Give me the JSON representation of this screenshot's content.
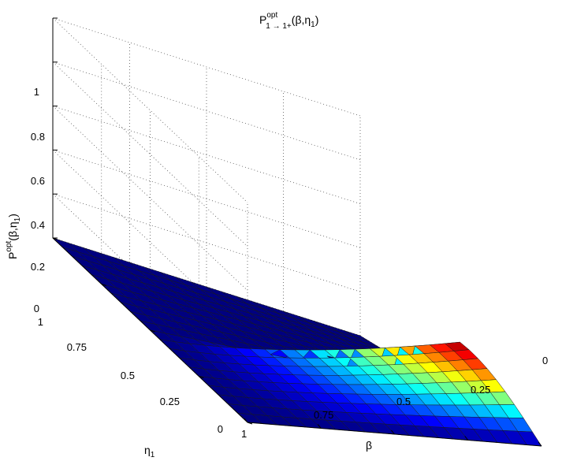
{
  "chart_data": {
    "type": "surface3d",
    "title": "P^{opt}_{1→ 1+}(β,η_1)",
    "title_parts": {
      "main": "P",
      "sup": "opt",
      "sub": "1 → 1+",
      "args": "(β,η",
      "args_sub": "1",
      "args_end": ")"
    },
    "xlabel": "β",
    "ylabel_parts": {
      "main": "η",
      "sub": "1"
    },
    "zlabel_parts": {
      "main": "P",
      "sup": "opt",
      "args": "(β,η",
      "args_sub": "1",
      "args_end": ")"
    },
    "x_range": [
      0,
      1
    ],
    "y_range": [
      0,
      1
    ],
    "zlim": [
      0,
      1
    ],
    "x_ticks": [
      "1",
      "0.75",
      "0.5",
      "0.25",
      "0"
    ],
    "x_tick_values": [
      1,
      0.75,
      0.5,
      0.25,
      0
    ],
    "y_ticks": [
      "0",
      "0.25",
      "0.5",
      "0.75",
      "1"
    ],
    "y_tick_values": [
      0,
      0.25,
      0.5,
      0.75,
      1
    ],
    "z_ticks": [
      "0",
      "0.2",
      "0.4",
      "0.6",
      "0.8",
      "1"
    ],
    "z_tick_values": [
      0,
      0.2,
      0.4,
      0.6,
      0.8,
      1
    ],
    "grid": true,
    "colormap": "jet",
    "color_range": [
      0,
      0.25
    ],
    "surface": {
      "x_steps": 20,
      "y_steps": 20,
      "peak_value": 0.25,
      "peak_at": {
        "beta": 0,
        "eta1": 0.5
      },
      "description_values": "P is 0 for eta1 >= 0.5; along beta = 0 it rises from 0 at eta1 = 0 to about 0.25 at eta1 = 0.5; it decreases to 0 as beta approaches 1"
    }
  }
}
